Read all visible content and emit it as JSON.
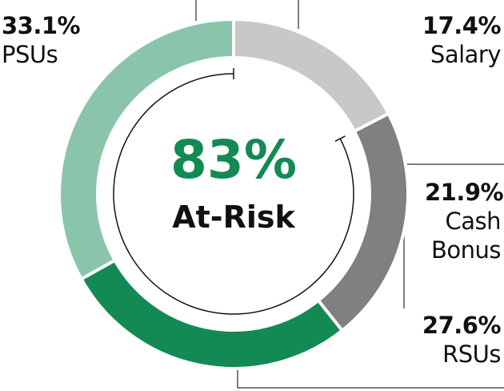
{
  "chart_data": {
    "type": "donut",
    "categories": [
      "Salary",
      "Cash Bonus",
      "RSUs",
      "PSUs"
    ],
    "values": [
      17.4,
      21.9,
      27.6,
      33.1
    ],
    "value_labels": [
      "17.4%",
      "21.9%",
      "27.6%",
      "33.1%"
    ],
    "colors": [
      "#c8c8c8",
      "#808080",
      "#138a53",
      "#8ac5ab"
    ],
    "annotations": [
      "83%",
      "At-Risk"
    ]
  }
}
